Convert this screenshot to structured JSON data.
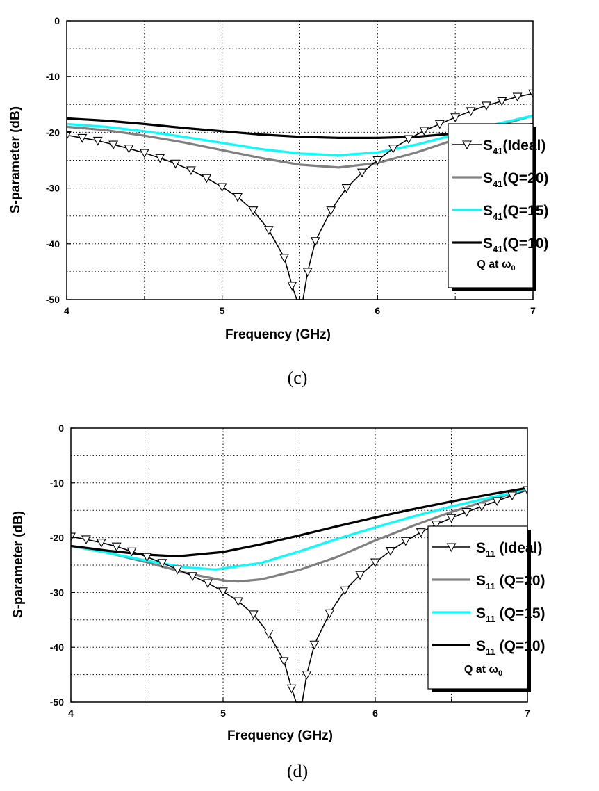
{
  "chart_data": [
    {
      "type": "line",
      "panel": "(c)",
      "caption": "(c)",
      "xlabel": "Frequency (GHz)",
      "ylabel": "S-parameter (dB)",
      "xlim": [
        4,
        7
      ],
      "ylim": [
        -50,
        0
      ],
      "x_ticks": [
        "4",
        "5",
        "6",
        "7"
      ],
      "y_ticks": [
        "0",
        "-10",
        "-20",
        "-30",
        "-40",
        "-50"
      ],
      "grid": true,
      "legend_position": "right",
      "legend_note": "Q at ω",
      "legend_note_sub": "0",
      "series": [
        {
          "name": "S41(Ideal)",
          "label_main": "S",
          "label_sub": "41",
          "label_rest": "(Ideal)",
          "color": "#000000",
          "marker": "triangle-down",
          "x": [
            4.0,
            4.1,
            4.2,
            4.3,
            4.4,
            4.5,
            4.6,
            4.7,
            4.8,
            4.9,
            5.0,
            5.1,
            5.2,
            5.3,
            5.4,
            5.45,
            5.48,
            5.5,
            5.52,
            5.55,
            5.6,
            5.7,
            5.8,
            5.9,
            6.0,
            6.1,
            6.2,
            6.3,
            6.4,
            6.5,
            6.6,
            6.7,
            6.8,
            6.9,
            7.0
          ],
          "y": [
            -20.5,
            -21.0,
            -21.5,
            -22.2,
            -22.9,
            -23.7,
            -24.6,
            -25.6,
            -26.8,
            -28.2,
            -29.8,
            -31.6,
            -34.0,
            -37.5,
            -42.5,
            -47.5,
            -50.0,
            -50.0,
            -50.0,
            -45.0,
            -39.5,
            -34.0,
            -30.0,
            -27.2,
            -25.0,
            -22.9,
            -21.2,
            -19.7,
            -18.5,
            -17.3,
            -16.2,
            -15.2,
            -14.4,
            -13.6,
            -13.0
          ]
        },
        {
          "name": "S41(Q=20)",
          "label_main": "S",
          "label_sub": "41",
          "label_rest": "(Q=20)",
          "color": "#808080",
          "x": [
            4.0,
            4.25,
            4.5,
            4.75,
            5.0,
            5.25,
            5.5,
            5.75,
            6.0,
            6.25,
            6.5,
            6.75,
            7.0
          ],
          "y": [
            -19.0,
            -19.6,
            -20.6,
            -21.8,
            -23.2,
            -24.6,
            -25.8,
            -26.3,
            -25.5,
            -23.6,
            -21.3,
            -19.0,
            -17.0
          ]
        },
        {
          "name": "S41(Q=15)",
          "label_main": "S",
          "label_sub": "41",
          "label_rest": "(Q=15)",
          "color": "#00ffff",
          "x": [
            4.0,
            4.25,
            4.5,
            4.75,
            5.0,
            5.25,
            5.5,
            5.75,
            6.0,
            6.25,
            6.5,
            6.75,
            7.0
          ],
          "y": [
            -18.5,
            -19.0,
            -19.8,
            -20.8,
            -21.9,
            -23.0,
            -23.8,
            -24.1,
            -23.6,
            -22.2,
            -20.4,
            -18.6,
            -17.0
          ]
        },
        {
          "name": "S41(Q=10)",
          "label_main": "S",
          "label_sub": "41",
          "label_rest": "(Q=10)",
          "color": "#000000",
          "x": [
            4.0,
            4.25,
            4.5,
            4.75,
            5.0,
            5.25,
            5.5,
            5.75,
            6.0,
            6.25,
            6.5,
            6.75,
            7.0
          ],
          "y": [
            -17.5,
            -17.9,
            -18.5,
            -19.2,
            -19.8,
            -20.4,
            -20.8,
            -21.0,
            -21.0,
            -20.8,
            -20.2,
            -19.3,
            -18.5
          ]
        }
      ]
    },
    {
      "type": "line",
      "panel": "(d)",
      "caption": "(d)",
      "xlabel": "Frequency (GHz)",
      "ylabel": "S-parameter (dB)",
      "xlim": [
        4,
        7
      ],
      "ylim": [
        -50,
        0
      ],
      "x_ticks": [
        "4",
        "5",
        "6",
        "7"
      ],
      "y_ticks": [
        "0",
        "-10",
        "-20",
        "-30",
        "-40",
        "-50"
      ],
      "grid": true,
      "legend_position": "right",
      "legend_note": "Q at ω",
      "legend_note_sub": "0",
      "series": [
        {
          "name": "S11 (Ideal)",
          "label_main": "S",
          "label_sub": "11",
          "label_rest": " (Ideal)",
          "color": "#000000",
          "marker": "triangle-down",
          "x": [
            4.0,
            4.1,
            4.2,
            4.3,
            4.4,
            4.5,
            4.6,
            4.7,
            4.8,
            4.9,
            5.0,
            5.1,
            5.2,
            5.3,
            5.4,
            5.45,
            5.48,
            5.5,
            5.52,
            5.55,
            5.6,
            5.7,
            5.8,
            5.9,
            6.0,
            6.1,
            6.2,
            6.3,
            6.4,
            6.5,
            6.6,
            6.7,
            6.8,
            6.9,
            7.0
          ],
          "y": [
            -19.8,
            -20.3,
            -20.9,
            -21.6,
            -22.5,
            -23.5,
            -24.6,
            -25.8,
            -27.0,
            -28.3,
            -29.8,
            -31.6,
            -34.0,
            -37.5,
            -42.5,
            -47.5,
            -50.0,
            -50.0,
            -50.0,
            -45.0,
            -39.5,
            -33.8,
            -29.6,
            -26.8,
            -24.5,
            -22.4,
            -20.6,
            -19.0,
            -17.6,
            -16.4,
            -15.3,
            -14.3,
            -13.3,
            -12.3,
            -11.3
          ]
        },
        {
          "name": "S11 (Q=20)",
          "label_main": "S",
          "label_sub": "11",
          "label_rest": " (Q=20)",
          "color": "#808080",
          "x": [
            4.0,
            4.25,
            4.5,
            4.75,
            5.0,
            5.1,
            5.25,
            5.5,
            5.75,
            6.0,
            6.25,
            6.5,
            6.75,
            7.0
          ],
          "y": [
            -21.5,
            -22.8,
            -24.5,
            -26.4,
            -27.8,
            -28.0,
            -27.6,
            -25.9,
            -23.5,
            -20.5,
            -17.8,
            -15.3,
            -13.1,
            -11.2
          ]
        },
        {
          "name": "S11 (Q=15)",
          "label_main": "S",
          "label_sub": "11",
          "label_rest": " (Q=15)",
          "color": "#00ffff",
          "x": [
            4.0,
            4.25,
            4.5,
            4.75,
            4.95,
            5.25,
            5.5,
            5.75,
            6.0,
            6.25,
            6.5,
            6.75,
            7.0
          ],
          "y": [
            -21.5,
            -22.8,
            -24.2,
            -25.4,
            -25.8,
            -24.6,
            -22.5,
            -20.2,
            -18.1,
            -16.1,
            -14.3,
            -12.7,
            -11.2
          ]
        },
        {
          "name": "S11 (Q=10)",
          "label_main": "S",
          "label_sub": "11",
          "label_rest": " (Q=10)",
          "color": "#000000",
          "x": [
            4.0,
            4.25,
            4.5,
            4.7,
            5.0,
            5.25,
            5.5,
            5.75,
            6.0,
            6.25,
            6.5,
            6.75,
            7.0
          ],
          "y": [
            -21.5,
            -22.4,
            -23.1,
            -23.4,
            -22.6,
            -21.2,
            -19.6,
            -17.9,
            -16.3,
            -14.8,
            -13.4,
            -12.1,
            -10.9
          ]
        }
      ]
    }
  ]
}
